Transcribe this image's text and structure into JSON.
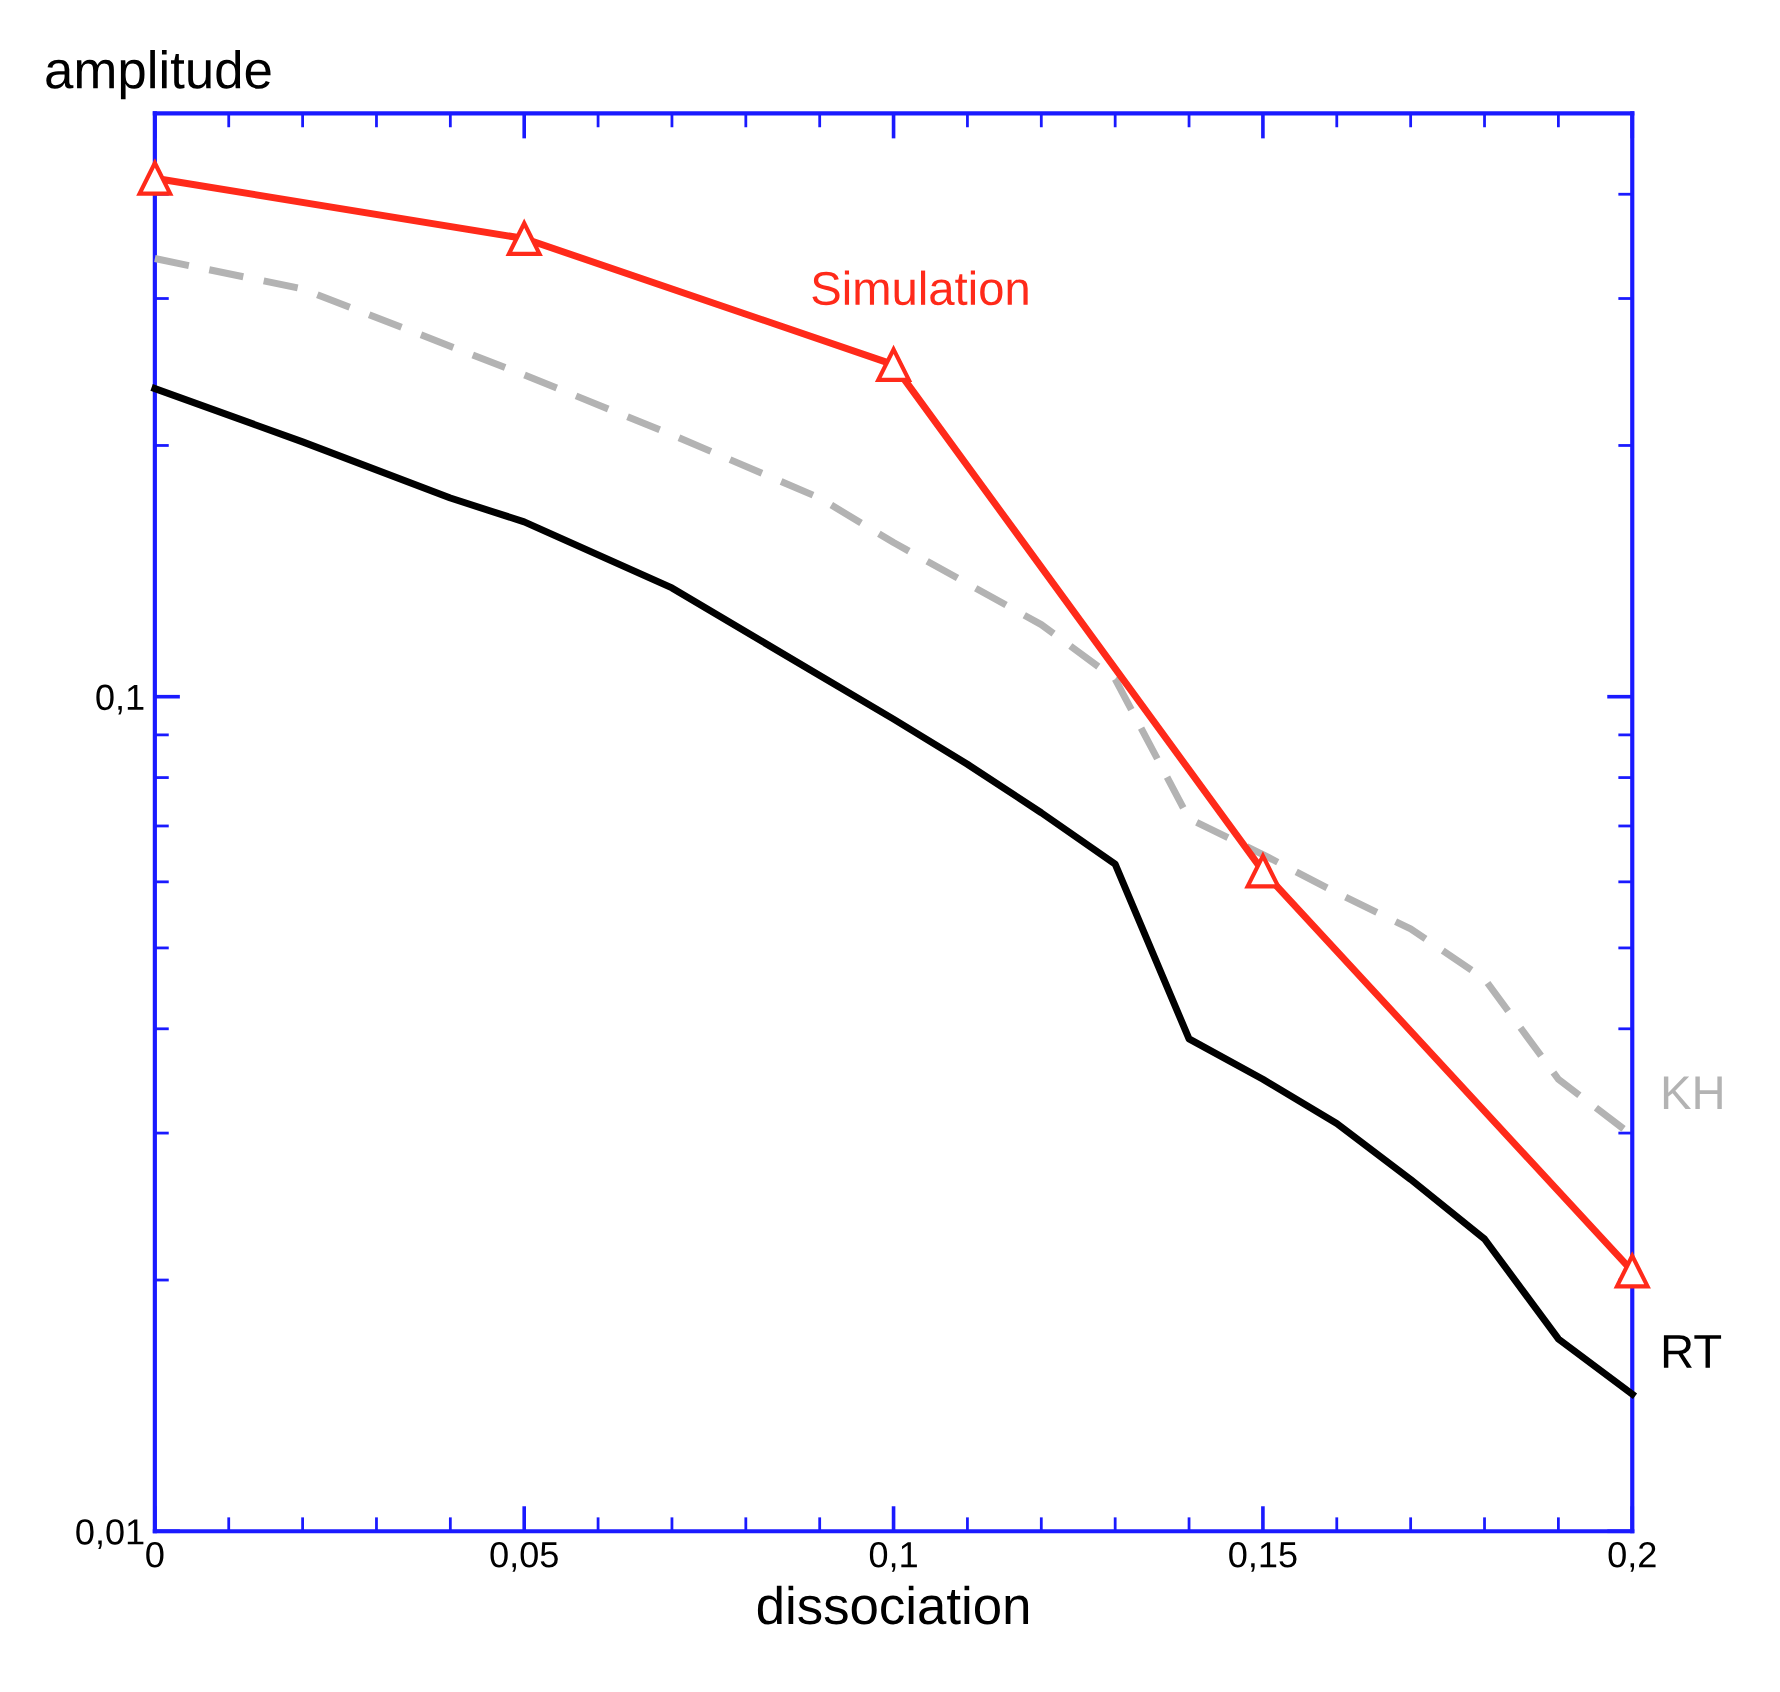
{
  "chart_data": {
    "type": "line",
    "xlabel": "dissociation",
    "ylabel": "amplitude",
    "log": "y",
    "xlim": [
      0,
      0.2
    ],
    "ylim": [
      0.01,
      0.5
    ],
    "xticks": [
      0,
      {
        "value": 0.05,
        "label": "0,05"
      },
      {
        "value": 0.1,
        "label": "0,1"
      },
      {
        "value": 0.15,
        "label": "0,15"
      },
      {
        "value": 0.2,
        "label": "0,2"
      }
    ],
    "yticks": [
      {
        "value": 0.01,
        "label": "0,01"
      },
      {
        "value": 0.1,
        "label": "0,1"
      }
    ],
    "grid": false,
    "legend": false,
    "series": [
      {
        "name": "Simulation",
        "color": "#ff2a1a",
        "marker": "triangle",
        "line_style": "solid",
        "x": [
          0,
          0.05,
          0.1,
          0.15,
          0.2
        ],
        "values": [
          0.418,
          0.354,
          0.25,
          0.0618,
          0.0205
        ]
      },
      {
        "name": "KH",
        "color": "#b3b3b3",
        "marker": "none",
        "line_style": "dashed",
        "x": [
          0,
          0.02,
          0.05,
          0.07,
          0.09,
          0.1,
          0.12,
          0.13,
          0.14,
          0.15,
          0.16,
          0.17,
          0.18,
          0.19,
          0.2
        ],
        "values": [
          0.335,
          0.308,
          0.243,
          0.206,
          0.173,
          0.153,
          0.122,
          0.105,
          0.0714,
          0.0647,
          0.0582,
          0.0527,
          0.0459,
          0.0348,
          0.0298
        ]
      },
      {
        "name": "RT",
        "color": "#000000",
        "marker": "none",
        "line_style": "solid",
        "x": [
          0,
          0.02,
          0.04,
          0.05,
          0.07,
          0.09,
          0.1,
          0.11,
          0.12,
          0.13,
          0.14,
          0.15,
          0.16,
          0.17,
          0.18,
          0.19,
          0.2
        ],
        "values": [
          0.234,
          0.202,
          0.173,
          0.162,
          0.135,
          0.106,
          0.094,
          0.083,
          0.0726,
          0.063,
          0.0389,
          0.0348,
          0.0308,
          0.0264,
          0.0224,
          0.017,
          0.0146
        ]
      }
    ]
  }
}
